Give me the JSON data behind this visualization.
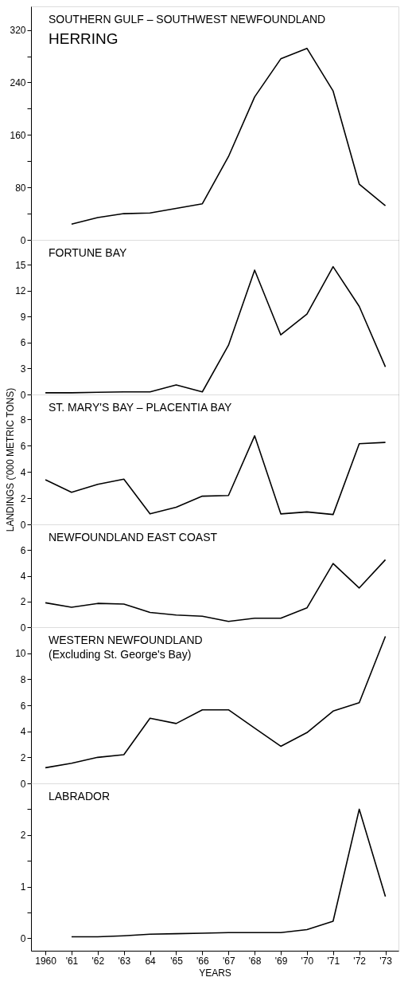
{
  "chart_data": [
    {
      "type": "line",
      "title": "SOUTHERN GULF – SOUTHWEST NEWFOUNDLAND",
      "annotations": [
        "HERRING"
      ],
      "x": [
        1961,
        1962,
        1963,
        1964,
        1965,
        1966,
        1967,
        1968,
        1969,
        1970,
        1971,
        1972,
        1973
      ],
      "series": [
        {
          "color": "#000000",
          "values": [
            24,
            34,
            40,
            41,
            48,
            55,
            127,
            218,
            276,
            292,
            227,
            85,
            52
          ]
        }
      ],
      "xlim": [
        1959.45,
        1973.5
      ],
      "ylim": [
        0,
        356
      ],
      "yticks": [
        0,
        {
          "value": 40,
          "label": null
        },
        80,
        {
          "value": 120,
          "label": null
        },
        160,
        {
          "value": 200,
          "label": null
        },
        240,
        {
          "value": 280,
          "label": null
        },
        320
      ],
      "tick_labels": "y",
      "grid": false
    },
    {
      "type": "line",
      "title": "FORTUNE BAY",
      "x": [
        1960,
        1961,
        1962,
        1963,
        1964,
        1965,
        1966,
        1967,
        1968,
        1969,
        1970,
        1971,
        1972,
        1973
      ],
      "series": [
        {
          "color": "#000000",
          "values": [
            0.2,
            0.2,
            0.25,
            0.3,
            0.3,
            1.1,
            0.3,
            5.7,
            14.4,
            6.9,
            9.3,
            14.8,
            10.2,
            3.2
          ]
        }
      ],
      "xlim": [
        1959.45,
        1973.5
      ],
      "ylim": [
        0,
        17.9
      ],
      "yticks": [
        0,
        3,
        6,
        9,
        12,
        15
      ],
      "tick_labels": "y",
      "grid": false
    },
    {
      "type": "line",
      "title": "ST. MARY'S BAY – PLACENTIA BAY",
      "ylabel": "LANDINGS ('000 METRIC TONS)",
      "x": [
        1960,
        1961,
        1962,
        1963,
        1964,
        1965,
        1966,
        1967,
        1968,
        1969,
        1970,
        1971,
        1972,
        1973
      ],
      "series": [
        {
          "color": "#000000",
          "values": [
            3.4,
            2.45,
            3.05,
            3.45,
            0.8,
            1.3,
            2.15,
            2.2,
            6.75,
            0.8,
            0.95,
            0.75,
            6.15,
            6.25
          ]
        }
      ],
      "xlim": [
        1959.45,
        1973.5
      ],
      "ylim": [
        0,
        9.9
      ],
      "yticks": [
        0,
        2,
        4,
        6,
        8
      ],
      "tick_labels": "y",
      "grid": false
    },
    {
      "type": "line",
      "title": "NEWFOUNDLAND EAST COAST",
      "x": [
        1960,
        1961,
        1962,
        1963,
        1964,
        1965,
        1966,
        1967,
        1968,
        1969,
        1970,
        1971,
        1972,
        1973
      ],
      "series": [
        {
          "color": "#000000",
          "values": [
            1.9,
            1.55,
            1.85,
            1.8,
            1.15,
            0.95,
            0.85,
            0.45,
            0.7,
            0.7,
            1.5,
            4.95,
            3.05,
            5.25
          ]
        }
      ],
      "xlim": [
        1959.45,
        1973.5
      ],
      "ylim": [
        0,
        8
      ],
      "yticks": [
        0,
        2,
        4,
        6
      ],
      "tick_labels": "y",
      "grid": false
    },
    {
      "type": "line",
      "title": "WESTERN NEWFOUNDLAND",
      "subtitle": "(Excluding St. George's Bay)",
      "x": [
        1960,
        1961,
        1962,
        1963,
        1964,
        1965,
        1966,
        1967,
        1968,
        1969,
        1970,
        1971,
        1972,
        1973
      ],
      "series": [
        {
          "color": "#000000",
          "values": [
            1.2,
            1.55,
            2.0,
            2.2,
            5.0,
            4.6,
            5.65,
            5.65,
            4.25,
            2.85,
            3.9,
            5.55,
            6.2,
            11.3
          ]
        }
      ],
      "xlim": [
        1959.45,
        1973.5
      ],
      "ylim": [
        0,
        12
      ],
      "yticks": [
        0,
        2,
        4,
        6,
        8,
        10
      ],
      "tick_labels": "y",
      "grid": false
    },
    {
      "type": "line",
      "title": "LABRADOR",
      "xlabel": "YEARS",
      "x": [
        1961,
        1962,
        1963,
        1964,
        1965,
        1966,
        1967,
        1968,
        1969,
        1970,
        1971,
        1972,
        1973
      ],
      "series": [
        {
          "color": "#000000",
          "values": [
            0.03,
            0.03,
            0.05,
            0.08,
            0.09,
            0.1,
            0.11,
            0.11,
            0.11,
            0.17,
            0.33,
            2.5,
            0.81
          ]
        }
      ],
      "xlim": [
        1959.45,
        1973.5
      ],
      "ylim": [
        -0.24,
        3
      ],
      "yticks": [
        0,
        {
          "value": 0.5,
          "label": null
        },
        1,
        {
          "value": 1.5,
          "label": null
        },
        2,
        {
          "value": 2.5,
          "label": null
        }
      ],
      "xticks": [
        {
          "value": 1960,
          "label": "1960"
        },
        {
          "value": 1961,
          "label": "'61"
        },
        {
          "value": 1962,
          "label": "'62"
        },
        {
          "value": 1963,
          "label": "'63"
        },
        {
          "value": 1964,
          "label": "64"
        },
        {
          "value": 1965,
          "label": "'65"
        },
        {
          "value": 1966,
          "label": "'66"
        },
        {
          "value": 1967,
          "label": "'67"
        },
        {
          "value": 1968,
          "label": "'68"
        },
        {
          "value": 1969,
          "label": "'69"
        },
        {
          "value": 1970,
          "label": "'70"
        },
        {
          "value": 1971,
          "label": "'71"
        },
        {
          "value": 1972,
          "label": "'72"
        },
        {
          "value": 1973,
          "label": "'73"
        }
      ],
      "grid": false
    }
  ]
}
